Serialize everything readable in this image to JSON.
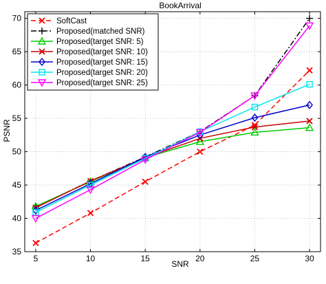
{
  "chart_data": {
    "type": "line",
    "title": "BookArrival",
    "xlabel": "SNR",
    "ylabel": "PSNR",
    "xlim": [
      4,
      31
    ],
    "ylim": [
      35,
      71
    ],
    "x_ticks": [
      5,
      10,
      15,
      20,
      25,
      30
    ],
    "y_ticks": [
      35,
      40,
      45,
      50,
      55,
      60,
      65,
      70
    ],
    "grid": true,
    "legend_position": "top-left",
    "series": [
      {
        "name": "SoftCast",
        "color": "#ff0000",
        "dash": "dashed",
        "marker": "x",
        "x": [
          5,
          10,
          15,
          20,
          25,
          30
        ],
        "y": [
          36.3,
          40.8,
          45.5,
          50.0,
          54.0,
          62.2
        ]
      },
      {
        "name": "Proposed(matched SNR)",
        "color": "#000000",
        "dash": "dashdot",
        "marker": "plus",
        "x": [
          5,
          10,
          15,
          20,
          25,
          30
        ],
        "y": [
          41.7,
          45.6,
          49.2,
          53.0,
          58.4,
          70.0
        ]
      },
      {
        "name": "Proposed(target SNR: 5)",
        "color": "#00cc00",
        "dash": "solid",
        "marker": "triangle-up",
        "x": [
          5,
          10,
          15,
          20,
          25,
          30
        ],
        "y": [
          41.8,
          45.5,
          49.1,
          51.5,
          52.9,
          53.6
        ]
      },
      {
        "name": "Proposed(target SNR: 10)",
        "color": "#cc0000",
        "dash": "solid",
        "marker": "x",
        "x": [
          5,
          10,
          15,
          20,
          25,
          30
        ],
        "y": [
          41.6,
          45.6,
          49.1,
          52.0,
          53.7,
          54.6
        ]
      },
      {
        "name": "Proposed(target SNR: 15)",
        "color": "#0000cc",
        "dash": "solid",
        "marker": "diamond",
        "x": [
          5,
          10,
          15,
          20,
          25,
          30
        ],
        "y": [
          41.2,
          45.2,
          49.2,
          52.5,
          55.1,
          57.0
        ]
      },
      {
        "name": "Proposed(target SNR: 20)",
        "color": "#00e5ee",
        "dash": "solid",
        "marker": "square",
        "x": [
          5,
          10,
          15,
          20,
          25,
          30
        ],
        "y": [
          40.9,
          45.0,
          49.0,
          53.0,
          56.7,
          60.1
        ]
      },
      {
        "name": "Proposed(target SNR: 25)",
        "color": "#ff00ff",
        "dash": "solid",
        "marker": "triangle-down",
        "x": [
          5,
          10,
          15,
          20,
          25,
          30
        ],
        "y": [
          40.0,
          44.3,
          48.8,
          52.9,
          58.4,
          68.9
        ]
      }
    ]
  }
}
